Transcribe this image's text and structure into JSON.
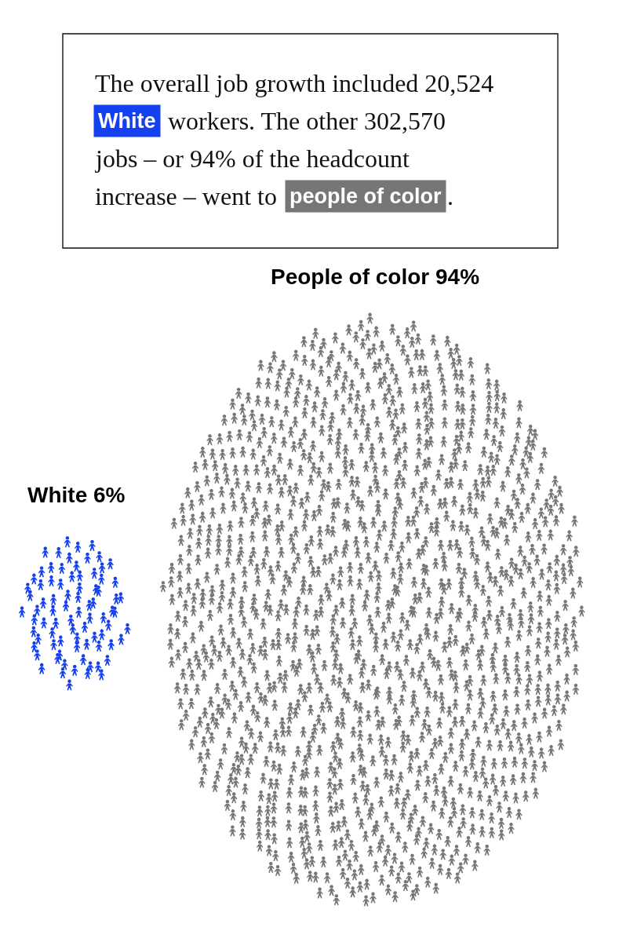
{
  "chart_data": {
    "type": "other",
    "title": "The overall job growth included 20,524\nWhite workers. The other 302,570\njobs – or 94% of the headcount\nincrease – went to people of color.",
    "categories": [
      "White",
      "People of color"
    ],
    "values": [
      6,
      94
    ],
    "value_labels": [
      "6%",
      "94%"
    ],
    "colors": [
      "#1540f0",
      "#767676"
    ]
  }
}
